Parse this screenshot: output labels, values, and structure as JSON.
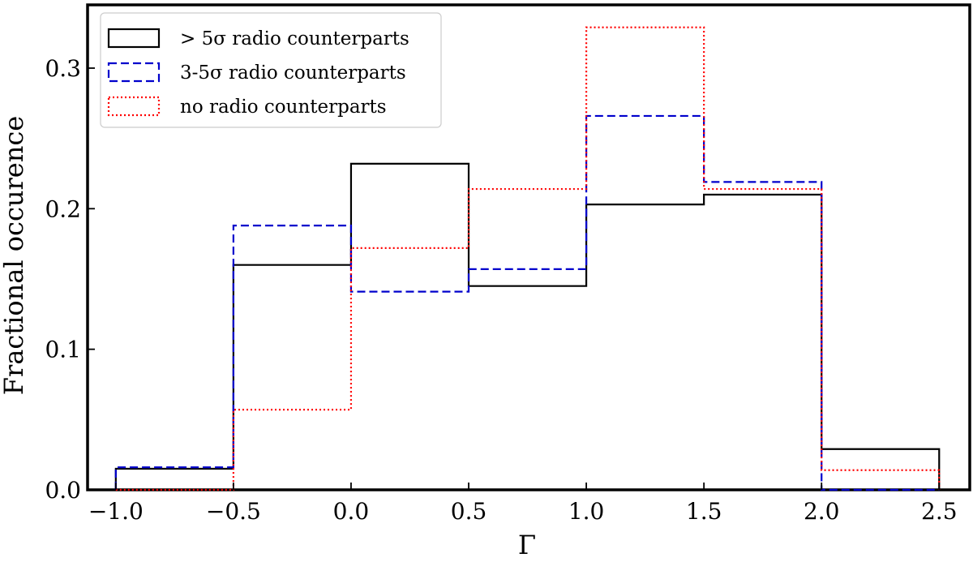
{
  "chart_data": {
    "type": "histogram",
    "xlabel": "Γ",
    "ylabel": "Fractional occurence",
    "xlim": [
      -1.12,
      2.63
    ],
    "ylim": [
      0,
      0.345
    ],
    "xticks": [
      -1.0,
      -0.5,
      0.0,
      0.5,
      1.0,
      1.5,
      2.0,
      2.5
    ],
    "xtick_labels": [
      "−1.0",
      "−0.5",
      "0.0",
      "0.5",
      "1.0",
      "1.5",
      "2.0",
      "2.5"
    ],
    "yticks": [
      0.0,
      0.1,
      0.2,
      0.3
    ],
    "ytick_labels": [
      "0.0",
      "0.1",
      "0.2",
      "0.3"
    ],
    "bin_edges": [
      -1.0,
      -0.5,
      0.0,
      0.5,
      1.0,
      1.5,
      2.0,
      2.5
    ],
    "series": [
      {
        "name": "> 5σ radio counterparts",
        "color": "#000000",
        "linestyle": "solid",
        "values": [
          0.015,
          0.16,
          0.232,
          0.145,
          0.203,
          0.21,
          0.029
        ]
      },
      {
        "name": "3-5σ radio counterparts",
        "color": "#0000cc",
        "linestyle": "dashed",
        "values": [
          0.016,
          0.188,
          0.141,
          0.157,
          0.266,
          0.219,
          0.0
        ]
      },
      {
        "name": "no radio counterparts",
        "color": "#ff0000",
        "linestyle": "dotted",
        "values": [
          0.0,
          0.057,
          0.172,
          0.214,
          0.329,
          0.214,
          0.014
        ]
      }
    ],
    "legend_position": "top-left",
    "grid": false
  }
}
